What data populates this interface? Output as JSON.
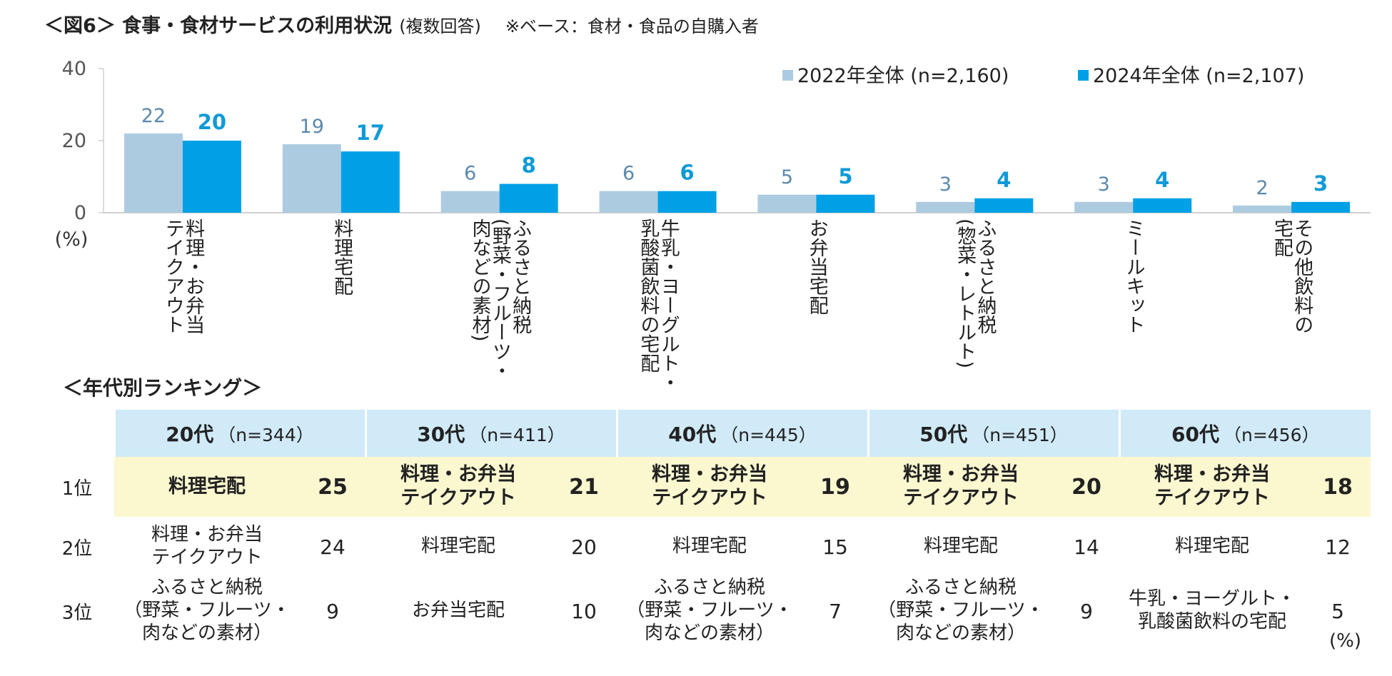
{
  "header": {
    "title": "＜図6＞ 食事・食材サービスの利用状況",
    "paren": "(複数回答)",
    "note": "※ベース：食材・食品の自購入者"
  },
  "colors": {
    "series_2022": "#adcbe0",
    "series_2024": "#00a0e6",
    "grid": "#d0d0d0"
  },
  "chart_data": {
    "type": "bar",
    "title": "食事・食材サービスの利用状況",
    "ylabel": "(%)",
    "ylim": [
      0,
      40
    ],
    "yticks": [
      0,
      20,
      40
    ],
    "grid": false,
    "legend_position": "top-right",
    "categories": [
      "料理・お弁当テイクアウト",
      "料理宅配",
      "ふるさと納税(野菜・フルーツ・肉などの素材)",
      "牛乳・ヨーグルト・乳酸菌飲料の宅配",
      "お弁当宅配",
      "ふるさと納税(惣菜・レトルト)",
      "ミールキット",
      "その他飲料の宅配"
    ],
    "category_display": [
      "料理・お弁当\nテイクアウト",
      "料理宅配",
      "ふるさと納税\n(野菜・フルーツ・\n肉などの素材)",
      "牛乳・ヨーグルト・\n乳酸菌飲料の宅配",
      "お弁当宅配",
      "ふるさと納税\n(惣菜・レトルト)",
      "ミールキット",
      "その他飲料の\n宅配"
    ],
    "series": [
      {
        "name": "2022年全体 (n=2,160)",
        "values": [
          22,
          19,
          6,
          6,
          5,
          3,
          3,
          2
        ]
      },
      {
        "name": "2024年全体 (n=2,107)",
        "values": [
          20,
          17,
          8,
          6,
          5,
          4,
          4,
          3
        ]
      }
    ]
  },
  "ranking": {
    "title": "＜年代別ランキング＞",
    "unit": "(%)",
    "rank_labels": [
      "1位",
      "2位",
      "3位"
    ],
    "groups": [
      {
        "age": "20代",
        "n": "（n=344）",
        "rows": [
          {
            "item": "料理宅配",
            "value": "25"
          },
          {
            "item": "料理・お弁当\nテイクアウト",
            "value": "24"
          },
          {
            "item": "ふるさと納税\n（野菜・フルーツ・\n肉などの素材）",
            "value": "9"
          }
        ]
      },
      {
        "age": "30代",
        "n": "（n=411）",
        "rows": [
          {
            "item": "料理・お弁当\nテイクアウト",
            "value": "21"
          },
          {
            "item": "料理宅配",
            "value": "20"
          },
          {
            "item": "お弁当宅配",
            "value": "10"
          }
        ]
      },
      {
        "age": "40代",
        "n": "（n=445）",
        "rows": [
          {
            "item": "料理・お弁当\nテイクアウト",
            "value": "19"
          },
          {
            "item": "料理宅配",
            "value": "15"
          },
          {
            "item": "ふるさと納税\n（野菜・フルーツ・\n肉などの素材）",
            "value": "7"
          }
        ]
      },
      {
        "age": "50代",
        "n": "（n=451）",
        "rows": [
          {
            "item": "料理・お弁当\nテイクアウト",
            "value": "20"
          },
          {
            "item": "料理宅配",
            "value": "14"
          },
          {
            "item": "ふるさと納税\n（野菜・フルーツ・\n肉などの素材）",
            "value": "9"
          }
        ]
      },
      {
        "age": "60代",
        "n": "（n=456）",
        "rows": [
          {
            "item": "料理・お弁当\nテイクアウト",
            "value": "18"
          },
          {
            "item": "料理宅配",
            "value": "12"
          },
          {
            "item": "牛乳・ヨーグルト・\n乳酸菌飲料の宅配",
            "value": "5"
          }
        ]
      }
    ]
  }
}
